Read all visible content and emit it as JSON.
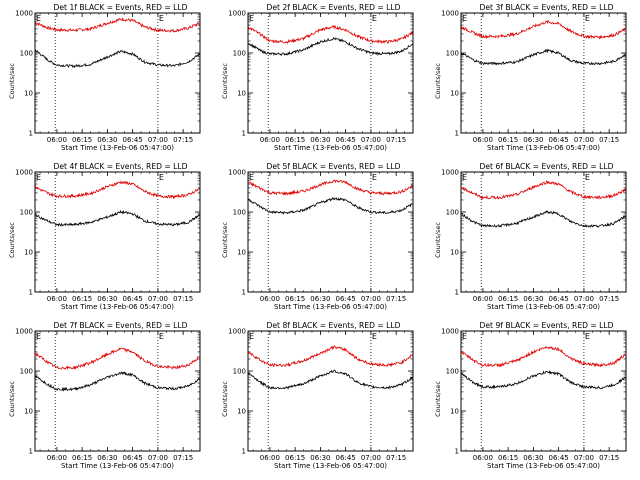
{
  "figure": {
    "background": "#ffffff",
    "colors": {
      "events": "#000000",
      "lld": "#e00000",
      "axes": "#000000"
    }
  },
  "chart_data": [
    {
      "type": "line",
      "title": "Det 1f BLACK = Events, RED = LLD",
      "xlabel": "Start Time (13-Feb-06 05:47:00)",
      "ylabel": "Counts/sec",
      "x_ticks": [
        "06:00",
        "06:15",
        "06:30",
        "06:45",
        "07:00",
        "07:15"
      ],
      "y_ticks": [
        "1",
        "10",
        "100",
        "1000"
      ],
      "yscale": "log",
      "ylim": [
        1,
        1000
      ],
      "xlim": [
        "05:47",
        "07:25"
      ],
      "markers": [
        {
          "label": "E",
          "time": "05:47"
        },
        {
          "label": "E",
          "time": "07:00"
        }
      ],
      "vlines": [
        "05:59",
        "07:00"
      ],
      "x": [
        "05:47",
        "05:55",
        "06:00",
        "06:10",
        "06:20",
        "06:30",
        "06:38",
        "06:45",
        "06:52",
        "07:00",
        "07:10",
        "07:18",
        "07:25"
      ],
      "series": [
        {
          "name": "LLD",
          "values": [
            580,
            420,
            380,
            370,
            400,
            560,
            700,
            650,
            450,
            370,
            360,
            420,
            560
          ]
        },
        {
          "name": "Events",
          "values": [
            120,
            65,
            50,
            47,
            52,
            80,
            110,
            95,
            60,
            50,
            48,
            60,
            95
          ]
        }
      ]
    },
    {
      "type": "line",
      "title": "Det 2f BLACK = Events, RED = LLD",
      "xlabel": "Start Time (13-Feb-06 05:47:00)",
      "ylabel": "Counts/sec",
      "x_ticks": [
        "06:00",
        "06:15",
        "06:30",
        "06:45",
        "07:00",
        "07:15"
      ],
      "y_ticks": [
        "1",
        "10",
        "100",
        "1000"
      ],
      "yscale": "log",
      "ylim": [
        1,
        1000
      ],
      "xlim": [
        "05:47",
        "07:25"
      ],
      "markers": [
        {
          "label": "E",
          "time": "05:47"
        },
        {
          "label": "E",
          "time": "07:00"
        }
      ],
      "vlines": [
        "05:59",
        "07:00"
      ],
      "x": [
        "05:47",
        "05:55",
        "06:00",
        "06:10",
        "06:20",
        "06:30",
        "06:38",
        "06:45",
        "06:52",
        "07:00",
        "07:10",
        "07:18",
        "07:25"
      ],
      "series": [
        {
          "name": "LLD",
          "values": [
            450,
            280,
            200,
            190,
            230,
            380,
            450,
            380,
            260,
            200,
            190,
            220,
            330
          ]
        },
        {
          "name": "Events",
          "values": [
            180,
            110,
            95,
            95,
            120,
            190,
            230,
            190,
            130,
            100,
            95,
            110,
            170
          ]
        }
      ]
    },
    {
      "type": "line",
      "title": "Det 3f BLACK = Events, RED = LLD",
      "xlabel": "Start Time (13-Feb-06 05:47:00)",
      "ylabel": "Counts/sec",
      "x_ticks": [
        "06:00",
        "06:15",
        "06:30",
        "06:45",
        "07:00",
        "07:15"
      ],
      "y_ticks": [
        "1",
        "10",
        "100",
        "1000"
      ],
      "yscale": "log",
      "ylim": [
        1,
        1000
      ],
      "xlim": [
        "05:47",
        "07:25"
      ],
      "markers": [
        {
          "label": "E",
          "time": "05:47"
        },
        {
          "label": "E",
          "time": "07:00"
        }
      ],
      "vlines": [
        "05:59",
        "07:00"
      ],
      "x": [
        "05:47",
        "05:55",
        "06:00",
        "06:10",
        "06:20",
        "06:30",
        "06:38",
        "06:45",
        "06:52",
        "07:00",
        "07:10",
        "07:18",
        "07:25"
      ],
      "series": [
        {
          "name": "LLD",
          "values": [
            450,
            310,
            260,
            260,
            300,
            460,
            600,
            540,
            350,
            260,
            250,
            280,
            400
          ]
        },
        {
          "name": "Events",
          "values": [
            100,
            65,
            55,
            55,
            60,
            90,
            115,
            100,
            65,
            55,
            55,
            62,
            95
          ]
        }
      ]
    },
    {
      "type": "line",
      "title": "Det 4f BLACK = Events, RED = LLD",
      "xlabel": "Start Time (13-Feb-06 05:47:00)",
      "ylabel": "Counts/sec",
      "x_ticks": [
        "06:00",
        "06:15",
        "06:30",
        "06:45",
        "07:00",
        "07:15"
      ],
      "y_ticks": [
        "1",
        "10",
        "100",
        "1000"
      ],
      "yscale": "log",
      "ylim": [
        1,
        1000
      ],
      "xlim": [
        "05:47",
        "07:25"
      ],
      "markers": [
        {
          "label": "E",
          "time": "05:47"
        },
        {
          "label": "E",
          "time": "07:00"
        }
      ],
      "vlines": [
        "05:59",
        "07:00"
      ],
      "x": [
        "05:47",
        "05:55",
        "06:00",
        "06:10",
        "06:20",
        "06:30",
        "06:38",
        "06:45",
        "06:52",
        "07:00",
        "07:10",
        "07:18",
        "07:25"
      ],
      "series": [
        {
          "name": "LLD",
          "values": [
            420,
            290,
            250,
            250,
            290,
            430,
            560,
            500,
            330,
            250,
            240,
            270,
            380
          ]
        },
        {
          "name": "Events",
          "values": [
            85,
            58,
            48,
            48,
            55,
            75,
            100,
            90,
            60,
            50,
            48,
            55,
            85
          ]
        }
      ]
    },
    {
      "type": "line",
      "title": "Det 5f BLACK = Events, RED = LLD",
      "xlabel": "Start Time (13-Feb-06 05:47:00)",
      "ylabel": "Counts/sec",
      "x_ticks": [
        "06:00",
        "06:15",
        "06:30",
        "06:45",
        "07:00",
        "07:15"
      ],
      "y_ticks": [
        "1",
        "10",
        "100",
        "1000"
      ],
      "yscale": "log",
      "ylim": [
        1,
        1000
      ],
      "xlim": [
        "05:47",
        "07:25"
      ],
      "markers": [
        {
          "label": "E",
          "time": "05:47"
        },
        {
          "label": "E",
          "time": "07:00"
        }
      ],
      "vlines": [
        "05:59",
        "07:00"
      ],
      "x": [
        "05:47",
        "05:55",
        "06:00",
        "06:10",
        "06:20",
        "06:30",
        "06:38",
        "06:45",
        "06:52",
        "07:00",
        "07:10",
        "07:18",
        "07:25"
      ],
      "series": [
        {
          "name": "LLD",
          "values": [
            550,
            380,
            300,
            290,
            330,
            480,
            600,
            560,
            380,
            300,
            290,
            320,
            450
          ]
        },
        {
          "name": "Events",
          "values": [
            210,
            130,
            100,
            95,
            110,
            170,
            220,
            200,
            130,
            100,
            95,
            110,
            160
          ]
        }
      ]
    },
    {
      "type": "line",
      "title": "Det 6f BLACK = Events, RED = LLD",
      "xlabel": "Start Time (13-Feb-06 05:47:00)",
      "ylabel": "Counts/sec",
      "x_ticks": [
        "06:00",
        "06:15",
        "06:30",
        "06:45",
        "07:00",
        "07:15"
      ],
      "y_ticks": [
        "1",
        "10",
        "100",
        "1000"
      ],
      "yscale": "log",
      "ylim": [
        1,
        1000
      ],
      "xlim": [
        "05:47",
        "07:25"
      ],
      "markers": [
        {
          "label": "E",
          "time": "05:47"
        },
        {
          "label": "E",
          "time": "07:00"
        }
      ],
      "vlines": [
        "05:59",
        "07:00"
      ],
      "x": [
        "05:47",
        "05:55",
        "06:00",
        "06:10",
        "06:20",
        "06:30",
        "06:38",
        "06:45",
        "06:52",
        "07:00",
        "07:10",
        "07:18",
        "07:25"
      ],
      "series": [
        {
          "name": "LLD",
          "values": [
            420,
            280,
            230,
            230,
            270,
            420,
            560,
            500,
            320,
            240,
            230,
            260,
            370
          ]
        },
        {
          "name": "Events",
          "values": [
            90,
            55,
            45,
            45,
            52,
            75,
            100,
            90,
            58,
            45,
            45,
            52,
            80
          ]
        }
      ]
    },
    {
      "type": "line",
      "title": "Det 7f BLACK = Events, RED = LLD",
      "xlabel": "Start Time (13-Feb-06 05:47:00)",
      "ylabel": "Counts/sec",
      "x_ticks": [
        "06:00",
        "06:15",
        "06:30",
        "06:45",
        "07:00",
        "07:15"
      ],
      "y_ticks": [
        "1",
        "10",
        "100",
        "1000"
      ],
      "yscale": "log",
      "ylim": [
        1,
        1000
      ],
      "xlim": [
        "05:47",
        "07:25"
      ],
      "markers": [
        {
          "label": "E",
          "time": "05:47"
        },
        {
          "label": "E",
          "time": "07:00"
        }
      ],
      "vlines": [
        "05:59",
        "07:00"
      ],
      "x": [
        "05:47",
        "05:55",
        "06:00",
        "06:10",
        "06:20",
        "06:30",
        "06:38",
        "06:45",
        "06:52",
        "07:00",
        "07:10",
        "07:18",
        "07:25"
      ],
      "series": [
        {
          "name": "LLD",
          "values": [
            280,
            160,
            120,
            120,
            160,
            260,
            360,
            300,
            180,
            130,
            120,
            140,
            230
          ]
        },
        {
          "name": "Events",
          "values": [
            75,
            45,
            35,
            35,
            45,
            70,
            90,
            80,
            50,
            38,
            36,
            42,
            65
          ]
        }
      ]
    },
    {
      "type": "line",
      "title": "Det 8f BLACK = Events, RED = LLD",
      "xlabel": "Start Time (13-Feb-06 05:47:00)",
      "ylabel": "Counts/sec",
      "x_ticks": [
        "06:00",
        "06:15",
        "06:30",
        "06:45",
        "07:00",
        "07:15"
      ],
      "y_ticks": [
        "1",
        "10",
        "100",
        "1000"
      ],
      "yscale": "log",
      "ylim": [
        1,
        1000
      ],
      "xlim": [
        "05:47",
        "07:25"
      ],
      "markers": [
        {
          "label": "E",
          "time": "05:47"
        },
        {
          "label": "E",
          "time": "07:00"
        }
      ],
      "vlines": [
        "05:59",
        "07:00"
      ],
      "x": [
        "05:47",
        "05:55",
        "06:00",
        "06:10",
        "06:20",
        "06:30",
        "06:38",
        "06:45",
        "06:52",
        "07:00",
        "07:10",
        "07:18",
        "07:25"
      ],
      "series": [
        {
          "name": "LLD",
          "values": [
            300,
            180,
            140,
            140,
            180,
            280,
            400,
            340,
            200,
            150,
            140,
            160,
            260
          ]
        },
        {
          "name": "Events",
          "values": [
            90,
            50,
            38,
            38,
            48,
            75,
            100,
            85,
            52,
            40,
            38,
            45,
            70
          ]
        }
      ]
    },
    {
      "type": "line",
      "title": "Det 9f BLACK = Events, RED = LLD",
      "xlabel": "Start Time (13-Feb-06 05:47:00)",
      "ylabel": "Counts/sec",
      "x_ticks": [
        "06:00",
        "06:15",
        "06:30",
        "06:45",
        "07:00",
        "07:15"
      ],
      "y_ticks": [
        "1",
        "10",
        "100",
        "1000"
      ],
      "yscale": "log",
      "ylim": [
        1,
        1000
      ],
      "xlim": [
        "05:47",
        "07:25"
      ],
      "markers": [
        {
          "label": "E",
          "time": "05:47"
        },
        {
          "label": "E",
          "time": "07:00"
        }
      ],
      "vlines": [
        "05:59",
        "07:00"
      ],
      "x": [
        "05:47",
        "05:55",
        "06:00",
        "06:10",
        "06:20",
        "06:30",
        "06:38",
        "06:45",
        "06:52",
        "07:00",
        "07:10",
        "07:18",
        "07:25"
      ],
      "series": [
        {
          "name": "LLD",
          "values": [
            300,
            180,
            140,
            140,
            180,
            300,
            400,
            350,
            210,
            150,
            140,
            160,
            270
          ]
        },
        {
          "name": "Events",
          "values": [
            85,
            50,
            40,
            40,
            48,
            75,
            95,
            85,
            52,
            40,
            38,
            45,
            70
          ]
        }
      ]
    }
  ]
}
